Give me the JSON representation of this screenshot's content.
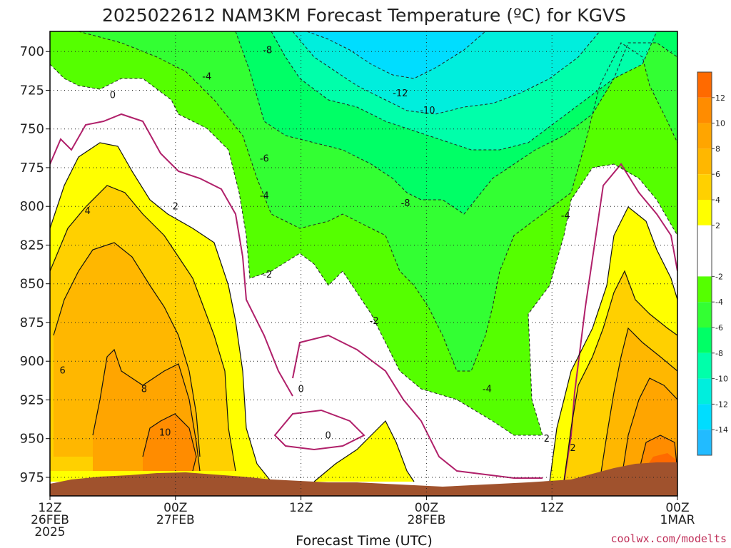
{
  "chart_data": {
    "type": "heatmap",
    "title": "2025022612 NAM3KM Forecast Temperature (ºC) for KGVS",
    "xlabel": "Forecast Time (UTC)",
    "ylabel": "",
    "x_ticks": [
      {
        "hour": 0,
        "lines": [
          "12Z",
          "26FEB",
          "2025"
        ]
      },
      {
        "hour": 12,
        "lines": [
          "00Z",
          "27FEB"
        ]
      },
      {
        "hour": 24,
        "lines": [
          "12Z"
        ]
      },
      {
        "hour": 36,
        "lines": [
          "00Z",
          "28FEB"
        ]
      },
      {
        "hour": 48,
        "lines": [
          "12Z"
        ]
      },
      {
        "hour": 60,
        "lines": [
          "00Z",
          "1MAR"
        ]
      }
    ],
    "xlim": [
      0,
      60
    ],
    "y_ticks": [
      700,
      725,
      750,
      775,
      800,
      825,
      850,
      875,
      900,
      925,
      950,
      975
    ],
    "ylim": [
      987,
      687
    ],
    "colorbar": {
      "ticks": [
        12,
        10,
        8,
        6,
        4,
        2,
        -2,
        -4,
        -6,
        -8,
        -10,
        -12,
        -14
      ],
      "bands": [
        {
          "from": 12,
          "to": 14,
          "color": "#ff6a00"
        },
        {
          "from": 10,
          "to": 12,
          "color": "#ff8c00"
        },
        {
          "from": 8,
          "to": 10,
          "color": "#ffa500"
        },
        {
          "from": 6,
          "to": 8,
          "color": "#ffb700"
        },
        {
          "from": 4,
          "to": 6,
          "color": "#ffd000"
        },
        {
          "from": 2,
          "to": 4,
          "color": "#ffff00"
        },
        {
          "from": -2,
          "to": 2,
          "color": "#ffffff"
        },
        {
          "from": -4,
          "to": -2,
          "color": "#55ff00"
        },
        {
          "from": -6,
          "to": -4,
          "color": "#33ff33"
        },
        {
          "from": -8,
          "to": -6,
          "color": "#00ff66"
        },
        {
          "from": -10,
          "to": -8,
          "color": "#00ffaa"
        },
        {
          "from": -12,
          "to": -10,
          "color": "#00eedd"
        },
        {
          "from": -14,
          "to": -12,
          "color": "#00ddff"
        },
        {
          "from": -16,
          "to": -14,
          "color": "#22bbff"
        }
      ]
    },
    "contour_labels": [
      {
        "hour": 24,
        "p": 920,
        "value": "0"
      },
      {
        "hour": 26.6,
        "p": 950,
        "value": "0"
      },
      {
        "hour": 6,
        "p": 730,
        "value": "0"
      },
      {
        "hour": 3.6,
        "p": 805,
        "value": "4"
      },
      {
        "hour": 1.2,
        "p": 908,
        "value": "6"
      },
      {
        "hour": 9,
        "p": 920,
        "value": "8"
      },
      {
        "hour": 11,
        "p": 948,
        "value": "10"
      },
      {
        "hour": 12,
        "p": 802,
        "value": "2"
      },
      {
        "hour": 47.5,
        "p": 952,
        "value": "2"
      },
      {
        "hour": 50,
        "p": 958,
        "value": "2"
      },
      {
        "hour": 15,
        "p": 718,
        "value": "-4"
      },
      {
        "hour": 20.5,
        "p": 795,
        "value": "-4"
      },
      {
        "hour": 41.8,
        "p": 920,
        "value": "-4"
      },
      {
        "hour": 49.3,
        "p": 808,
        "value": "-4"
      },
      {
        "hour": 20.8,
        "p": 846,
        "value": "-2"
      },
      {
        "hour": 31,
        "p": 876,
        "value": "-2"
      },
      {
        "hour": 20.5,
        "p": 771,
        "value": "-6"
      },
      {
        "hour": 20.8,
        "p": 701,
        "value": "-8"
      },
      {
        "hour": 34,
        "p": 800,
        "value": "-8"
      },
      {
        "hour": 36.1,
        "p": 740,
        "value": "-10"
      },
      {
        "hour": 33.5,
        "p": 729,
        "value": "-12"
      }
    ],
    "grid": true,
    "colors": {
      "ground": "#a0522d",
      "contour_zero": "#b0206a"
    }
  },
  "credit": "coolwx.com/modelts"
}
